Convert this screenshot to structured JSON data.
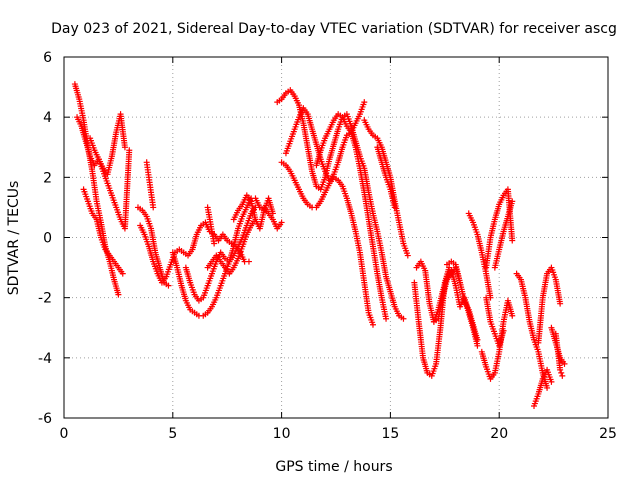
{
  "chart_data": {
    "type": "scatter",
    "title": "Day 023 of 2021, Sidereal Day-to-day VTEC variation (SDTVAR) for receiver ascg",
    "xlabel": "GPS time / hours",
    "ylabel": "SDTVAR / TECUs",
    "xlim": [
      0,
      25
    ],
    "ylim": [
      -6,
      6
    ],
    "xticks": [
      0,
      5,
      10,
      15,
      20,
      25
    ],
    "yticks": [
      -6,
      -4,
      -2,
      0,
      2,
      4,
      6
    ],
    "xtick_labels": [
      "0",
      "5",
      "10",
      "15",
      "20",
      "25"
    ],
    "ytick_labels": [
      "-6",
      "-4",
      "-2",
      "0",
      "2",
      "4",
      "6"
    ],
    "grid": true,
    "marker": "+",
    "series_color": "#ff0000",
    "series": [
      {
        "name": "s1",
        "x": [
          0.5,
          0.7,
          0.9,
          1.1,
          1.3,
          1.5,
          1.7,
          1.9,
          2.1,
          2.3,
          2.5
        ],
        "y": [
          5.1,
          4.6,
          3.9,
          3.0,
          2.2,
          1.2,
          0.5,
          -0.3,
          -0.8,
          -1.4,
          -1.9
        ]
      },
      {
        "name": "s2",
        "x": [
          0.6,
          0.8,
          1.0,
          1.2,
          1.4,
          1.6,
          1.8,
          2.0,
          2.2,
          2.4,
          2.6,
          2.8
        ],
        "y": [
          4.0,
          3.7,
          3.2,
          2.7,
          2.4,
          2.6,
          2.3,
          2.1,
          2.7,
          3.5,
          4.1,
          3.0
        ]
      },
      {
        "name": "s3",
        "x": [
          0.9,
          1.1,
          1.3,
          1.5,
          1.7,
          1.9,
          2.1,
          2.3,
          2.5,
          2.7
        ],
        "y": [
          1.6,
          1.2,
          0.8,
          0.6,
          0.0,
          -0.4,
          -0.6,
          -0.8,
          -1.0,
          -1.2
        ]
      },
      {
        "name": "s4",
        "x": [
          1.2,
          1.4,
          1.6,
          1.8,
          2.0,
          2.2,
          2.4,
          2.6,
          2.8,
          3.0
        ],
        "y": [
          3.3,
          2.9,
          2.6,
          2.2,
          1.8,
          1.4,
          1.0,
          0.6,
          0.3,
          2.9
        ]
      },
      {
        "name": "s5",
        "x": [
          3.4,
          3.6,
          3.8,
          4.0,
          4.2,
          4.4,
          4.6,
          4.8
        ],
        "y": [
          1.0,
          0.9,
          0.7,
          0.3,
          -0.5,
          -1.0,
          -1.5,
          -1.6
        ]
      },
      {
        "name": "s6",
        "x": [
          3.8,
          3.9,
          4.0,
          4.1
        ],
        "y": [
          2.5,
          2.0,
          1.5,
          1.0
        ]
      },
      {
        "name": "s7",
        "x": [
          3.5,
          3.7,
          3.9,
          4.1,
          4.3,
          4.5,
          4.7,
          4.9,
          5.1,
          5.3,
          5.5,
          5.7,
          5.9,
          6.1,
          6.3,
          6.5,
          6.7,
          6.9,
          7.1,
          7.3,
          7.5,
          7.7,
          7.9,
          8.1,
          8.3,
          8.5
        ],
        "y": [
          0.4,
          0.1,
          -0.3,
          -0.8,
          -1.2,
          -1.5,
          -1.3,
          -0.9,
          -0.5,
          -0.4,
          -0.5,
          -0.6,
          -0.4,
          0.1,
          0.4,
          0.5,
          0.2,
          0.1,
          -0.1,
          0.1,
          -0.1,
          -0.2,
          -0.3,
          -0.5,
          -0.8,
          -0.8
        ]
      },
      {
        "name": "s8",
        "x": [
          5.0,
          5.2,
          5.4,
          5.6,
          5.8,
          6.0,
          6.2,
          6.4,
          6.6,
          6.8,
          7.0,
          7.2,
          7.4,
          7.6,
          7.8,
          8.0,
          8.2,
          8.4,
          8.6,
          8.8,
          9.0,
          9.2,
          9.4,
          9.6,
          9.8,
          10.0
        ],
        "y": [
          -0.5,
          -1.0,
          -1.6,
          -2.1,
          -2.4,
          -2.5,
          -2.6,
          -2.6,
          -2.5,
          -2.3,
          -2.0,
          -1.6,
          -1.2,
          -0.8,
          -0.3,
          0.3,
          0.7,
          1.0,
          1.3,
          1.3,
          1.0,
          1.0,
          0.8,
          0.6,
          0.3,
          0.5
        ]
      },
      {
        "name": "s9",
        "x": [
          5.6,
          5.8,
          6.0,
          6.2,
          6.4,
          6.6,
          6.8,
          7.0,
          7.2,
          7.4,
          7.6,
          7.8,
          8.0,
          8.2,
          8.4,
          8.6,
          8.8,
          9.0,
          9.2
        ],
        "y": [
          -1.0,
          -1.5,
          -1.9,
          -2.1,
          -2.0,
          -1.6,
          -1.2,
          -0.8,
          -0.5,
          -0.7,
          -0.8,
          -0.6,
          -0.3,
          0.0,
          0.4,
          0.8,
          1.0,
          1.0,
          0.9
        ]
      },
      {
        "name": "s10",
        "x": [
          6.6,
          6.8,
          7.0,
          7.2,
          7.4,
          7.6,
          7.8,
          8.0,
          8.2,
          8.4,
          8.6,
          8.8
        ],
        "y": [
          -1.0,
          -0.8,
          -0.6,
          -0.8,
          -1.0,
          -1.2,
          -1.0,
          -0.7,
          -0.3,
          0.1,
          0.4,
          0.6
        ]
      },
      {
        "name": "s11",
        "x": [
          7.8,
          8.0,
          8.2,
          8.4,
          8.6,
          8.8,
          9.0,
          9.2,
          9.4,
          9.6
        ],
        "y": [
          0.6,
          0.9,
          1.1,
          1.4,
          1.2,
          0.6,
          0.3,
          0.9,
          1.3,
          0.8
        ]
      },
      {
        "name": "s12",
        "x": [
          6.6,
          6.7,
          6.8,
          6.9
        ],
        "y": [
          1.0,
          0.6,
          0.2,
          -0.2
        ]
      },
      {
        "name": "s13",
        "x": [
          10.0,
          10.2,
          10.4,
          10.6,
          10.8,
          11.0,
          11.2,
          11.4,
          11.6,
          11.8,
          12.0,
          12.2,
          12.4,
          12.6,
          12.8,
          13.0,
          13.2,
          13.4,
          13.6,
          13.8,
          14.0,
          14.2
        ],
        "y": [
          2.5,
          2.4,
          2.2,
          1.9,
          1.6,
          1.3,
          1.1,
          1.0,
          1.0,
          1.2,
          1.5,
          1.8,
          2.0,
          1.9,
          1.7,
          1.3,
          0.8,
          0.2,
          -0.5,
          -1.5,
          -2.5,
          -2.9
        ]
      },
      {
        "name": "s14",
        "x": [
          10.2,
          10.4,
          10.6,
          10.8,
          11.0,
          11.2,
          11.4,
          11.6,
          11.8,
          12.0,
          12.2,
          12.4,
          12.6,
          12.8,
          13.0,
          13.2,
          13.4,
          13.6,
          13.8,
          14.0,
          14.2,
          14.4,
          14.6,
          14.8
        ],
        "y": [
          2.8,
          3.2,
          3.6,
          4.0,
          4.3,
          4.1,
          3.6,
          3.1,
          2.6,
          2.2,
          1.9,
          2.1,
          2.5,
          3.0,
          3.4,
          3.5,
          3.0,
          2.3,
          1.5,
          0.6,
          -0.3,
          -1.2,
          -2.0,
          -2.7
        ]
      },
      {
        "name": "s15",
        "x": [
          9.8,
          10.0,
          10.2,
          10.4,
          10.6,
          10.8,
          11.0,
          11.2,
          11.4,
          11.6,
          11.8,
          12.0,
          12.2,
          12.4,
          12.6,
          12.8,
          13.0,
          13.2,
          13.4,
          13.6,
          13.8,
          14.0,
          14.2,
          14.4,
          14.6,
          14.8,
          15.0,
          15.2,
          15.4,
          15.6
        ],
        "y": [
          4.5,
          4.6,
          4.8,
          4.9,
          4.7,
          4.4,
          3.8,
          3.0,
          2.2,
          1.7,
          1.6,
          2.0,
          2.6,
          3.1,
          3.6,
          4.0,
          4.1,
          3.7,
          3.2,
          2.7,
          2.3,
          1.5,
          0.8,
          0.2,
          -0.5,
          -1.3,
          -1.8,
          -2.3,
          -2.6,
          -2.7
        ]
      },
      {
        "name": "s16",
        "x": [
          11.6,
          11.8,
          12.0,
          12.2,
          12.4,
          12.6,
          12.8,
          13.0,
          13.2,
          13.4,
          13.6,
          13.8
        ],
        "y": [
          2.4,
          2.9,
          3.3,
          3.6,
          3.9,
          4.1,
          4.0,
          3.7,
          3.5,
          3.8,
          4.1,
          4.5
        ]
      },
      {
        "name": "s17",
        "x": [
          13.8,
          14.0,
          14.2,
          14.4,
          14.6,
          14.8,
          15.0,
          15.2,
          15.4,
          15.6,
          15.8
        ],
        "y": [
          3.9,
          3.6,
          3.4,
          3.3,
          3.0,
          2.5,
          2.0,
          1.2,
          0.5,
          -0.2,
          -0.6
        ]
      },
      {
        "name": "s18",
        "x": [
          14.4,
          14.6,
          14.8,
          15.0,
          15.2
        ],
        "y": [
          3.0,
          2.5,
          2.0,
          1.6,
          1.0
        ]
      },
      {
        "name": "s19",
        "x": [
          16.1,
          16.3,
          16.5,
          16.7,
          16.9,
          17.1,
          17.3,
          17.5,
          17.7
        ],
        "y": [
          -1.5,
          -2.8,
          -4.0,
          -4.5,
          -4.6,
          -4.2,
          -3.0,
          -1.5,
          -1.0
        ]
      },
      {
        "name": "s20",
        "x": [
          16.2,
          16.4,
          16.6,
          16.8,
          17.0,
          17.2,
          17.4,
          17.6,
          17.8,
          18.0,
          18.2
        ],
        "y": [
          -1.0,
          -0.8,
          -1.1,
          -2.2,
          -2.8,
          -2.7,
          -2.0,
          -1.4,
          -1.2,
          -1.0,
          -1.5
        ]
      },
      {
        "name": "s21",
        "x": [
          17.0,
          17.2,
          17.4,
          17.6,
          17.8,
          18.0,
          18.2,
          18.4,
          18.6,
          18.8,
          19.0
        ],
        "y": [
          -2.8,
          -2.4,
          -1.8,
          -1.3,
          -1.1,
          -1.6,
          -2.3,
          -2.0,
          -2.5,
          -3.0,
          -3.6
        ]
      },
      {
        "name": "s22",
        "x": [
          17.6,
          17.8,
          18.0,
          18.2,
          18.4,
          18.6,
          18.8,
          19.0
        ],
        "y": [
          -0.9,
          -0.8,
          -0.9,
          -1.5,
          -2.1,
          -2.4,
          -2.9,
          -3.4
        ]
      },
      {
        "name": "s23",
        "x": [
          18.6,
          18.8,
          19.0,
          19.2,
          19.4,
          19.6
        ],
        "y": [
          0.8,
          0.5,
          0.1,
          -0.5,
          -1.2,
          -2.0
        ]
      },
      {
        "name": "s24",
        "x": [
          19.2,
          19.4,
          19.6,
          19.8,
          20.0,
          20.2,
          20.4,
          20.6
        ],
        "y": [
          -3.8,
          -4.3,
          -4.7,
          -4.5,
          -3.8,
          -2.8,
          -2.1,
          -2.6
        ]
      },
      {
        "name": "s25",
        "x": [
          19.4,
          19.6,
          19.8,
          20.0,
          20.2,
          20.4,
          20.6
        ],
        "y": [
          -1.0,
          0.0,
          0.6,
          1.1,
          1.4,
          1.6,
          -0.1
        ]
      },
      {
        "name": "s26",
        "x": [
          19.8,
          20.0,
          20.2,
          20.4,
          20.6
        ],
        "y": [
          -1.0,
          -0.4,
          0.2,
          0.7,
          1.2
        ]
      },
      {
        "name": "s27",
        "x": [
          19.4,
          19.6,
          19.8,
          20.0,
          20.2
        ],
        "y": [
          -2.0,
          -2.8,
          -3.2,
          -3.6,
          -3.1
        ]
      },
      {
        "name": "s28",
        "x": [
          20.8,
          21.0,
          21.2,
          21.4,
          21.6,
          21.8,
          22.0,
          22.2
        ],
        "y": [
          -1.2,
          -1.4,
          -2.0,
          -2.8,
          -3.4,
          -3.8,
          -4.5,
          -5.0
        ]
      },
      {
        "name": "s29",
        "x": [
          21.6,
          21.8,
          22.0,
          22.2,
          22.4
        ],
        "y": [
          -5.6,
          -5.2,
          -4.7,
          -4.4,
          -4.8
        ]
      },
      {
        "name": "s30",
        "x": [
          21.8,
          22.0,
          22.2,
          22.4,
          22.6,
          22.8
        ],
        "y": [
          -3.5,
          -2.0,
          -1.2,
          -1.0,
          -1.4,
          -2.2
        ]
      },
      {
        "name": "s31",
        "x": [
          22.4,
          22.6,
          22.8,
          23.0
        ],
        "y": [
          -3.0,
          -3.5,
          -4.0,
          -4.2
        ]
      },
      {
        "name": "s32",
        "x": [
          22.6,
          22.7,
          22.8,
          22.9
        ],
        "y": [
          -3.2,
          -3.8,
          -4.4,
          -4.6
        ]
      }
    ]
  }
}
